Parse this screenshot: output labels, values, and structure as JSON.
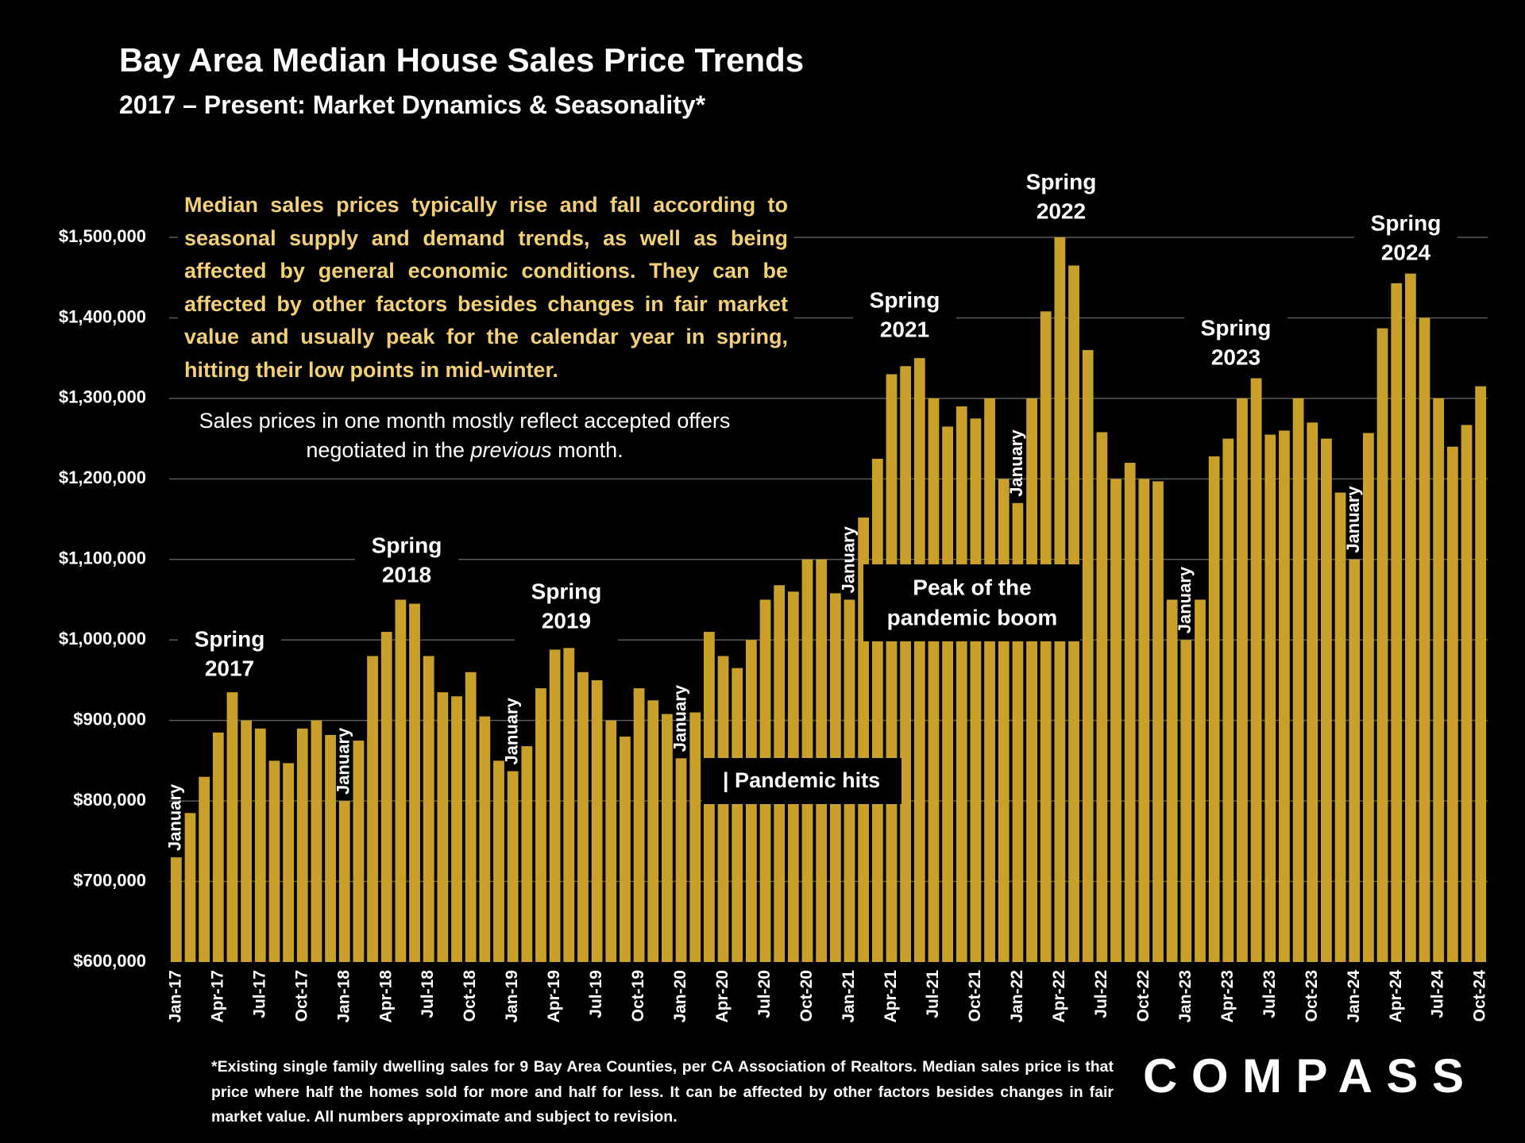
{
  "chart_data": {
    "type": "bar",
    "title": "Bay Area Median House Sales Price Trends",
    "subtitle": "2017 – Present:  Market Dynamics & Seasonality*",
    "color": "#c9a12a",
    "grid": true,
    "categories": [
      "Jan-17",
      null,
      null,
      "Apr-17",
      null,
      null,
      "Jul-17",
      null,
      null,
      "Oct-17",
      null,
      null,
      "Jan-18",
      null,
      null,
      "Apr-18",
      null,
      null,
      "Jul-18",
      null,
      null,
      "Oct-18",
      null,
      null,
      "Jan-19",
      null,
      null,
      "Apr-19",
      null,
      null,
      "Jul-19",
      null,
      null,
      "Oct-19",
      null,
      null,
      "Jan-20",
      null,
      null,
      "Apr-20",
      null,
      null,
      "Jul-20",
      null,
      null,
      "Oct-20",
      null,
      null,
      "Jan-21",
      null,
      null,
      "Apr-21",
      null,
      null,
      "Jul-21",
      null,
      null,
      "Oct-21",
      null,
      null,
      "Jan-22",
      null,
      null,
      "Apr-22",
      null,
      null,
      "Jul-22",
      null,
      null,
      "Oct-22",
      null,
      null,
      "Jan-23",
      null,
      null,
      "Apr-23",
      null,
      null,
      "Jul-23",
      null,
      null,
      "Oct-23",
      null,
      null,
      "Jan-24",
      null,
      null,
      "Apr-24",
      null,
      null,
      "Jul-24",
      null,
      null,
      "Oct-24"
    ],
    "values": [
      730000,
      785000,
      830000,
      885000,
      935000,
      900000,
      890000,
      850000,
      847000,
      890000,
      900000,
      882000,
      800000,
      875000,
      980000,
      1010000,
      1050000,
      1045000,
      980000,
      935000,
      930000,
      960000,
      905000,
      850000,
      837000,
      868000,
      940000,
      988000,
      990000,
      960000,
      950000,
      900000,
      880000,
      940000,
      925000,
      908000,
      853000,
      910000,
      1010000,
      980000,
      965000,
      1000000,
      1050000,
      1068000,
      1060000,
      1100000,
      1100000,
      1058000,
      1050000,
      1152000,
      1225000,
      1330000,
      1340000,
      1350000,
      1300000,
      1265000,
      1290000,
      1275000,
      1300000,
      1200000,
      1170000,
      1300000,
      1408000,
      1500000,
      1465000,
      1360000,
      1258000,
      1200000,
      1220000,
      1200000,
      1197000,
      1050000,
      1000000,
      1050000,
      1228000,
      1250000,
      1300000,
      1325000,
      1255000,
      1260000,
      1300000,
      1270000,
      1250000,
      1183000,
      1100000,
      1257000,
      1387000,
      1443000,
      1455000,
      1400000,
      1300000,
      1240000,
      1267000,
      1315000
    ],
    "ylim": [
      600000,
      1500000
    ],
    "yticks": [
      {
        "value": 600000,
        "label": "$600,000"
      },
      {
        "value": 700000,
        "label": "$700,000"
      },
      {
        "value": 800000,
        "label": "$800,000"
      },
      {
        "value": 900000,
        "label": "$900,000"
      },
      {
        "value": 1000000,
        "label": "$1,000,000"
      },
      {
        "value": 1100000,
        "label": "$1,100,000"
      },
      {
        "value": 1200000,
        "label": "$1,200,000"
      },
      {
        "value": 1300000,
        "label": "$1,300,000"
      },
      {
        "value": 1400000,
        "label": "$1,400,000"
      },
      {
        "value": 1500000,
        "label": "$1,500,000"
      }
    ],
    "spring_labels": [
      [
        "Spring",
        "2017"
      ],
      [
        "Spring",
        "2018"
      ],
      [
        "Spring",
        "2019"
      ],
      [
        "Spring",
        "2021"
      ],
      [
        "Spring",
        "2022"
      ],
      [
        "Spring",
        "2023"
      ],
      [
        "Spring",
        "2024"
      ]
    ],
    "january_labels": [
      "January",
      "January",
      "January",
      "January",
      "January",
      "January",
      "January",
      "January"
    ],
    "pandemic_label": "| Pandemic hits",
    "peak_label": [
      "Peak of the",
      "pandemic boom"
    ],
    "description": "Median sales prices typically rise and fall according to seasonal supply and demand trends, as well as being affected by general economic conditions. They can be affected by other factors besides changes in fair market value and usually peak for the calendar year in spring, hitting their low points in mid-winter.",
    "lag_note": [
      "Sales prices in one month mostly reflect accepted offers negotiated in the ",
      "previous",
      " month."
    ],
    "footnote": "*Existing single family dwelling sales for 9 Bay Area Counties, per CA Association of Realtors. Median sales price is that price where half the homes sold for more and half for less. It can be affected by other factors besides changes in fair market value. All numbers approximate and subject to revision.",
    "logo": "COMPASS"
  }
}
